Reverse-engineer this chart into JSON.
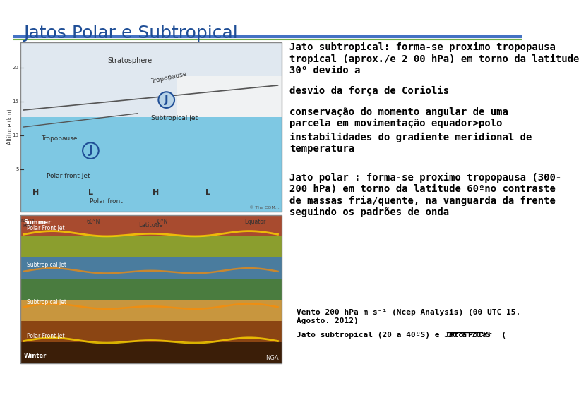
{
  "title": "Jatos Polar e Subtropical",
  "title_color": "#1F4E96",
  "title_fontsize": 18,
  "background_color": "#ffffff",
  "header_line_color": "#4472C4",
  "header_line_color2": "#70AD47",
  "text_right_top": "Jato subtropical: forma-se proximo tropopausa\ntropical (aprox./e 2 00 hPa) em torno da latitude\n30º devido a",
  "bullet1": "desvio da força de Coriolis",
  "bullet2": "conservação do momento angular de uma\nparcela em movimentação equador>polo",
  "bullet3": "instabilidades do gradiente meridional de\ntemperatura",
  "text_jato_polar": "Jato polar : forma-se proximo tropopausa (300-\n200 hPa) em torno da latitude 60ºno contraste\nde massas fria/quente, na vanguarda da frente\nseguindo os padrões de onda",
  "caption1": "Vento 200 hPa m s⁻¹ (Ncep Analysis) (00 UTC 15.\nAgosto. 2012)",
  "caption2_normal": "Jato subtropical (20 a 40ºS) e Jato Polar  (",
  "caption2_bold": "30 a 70ºS",
  "text_fontsize": 10,
  "bullet_fontsize": 10,
  "small_fontsize": 8
}
